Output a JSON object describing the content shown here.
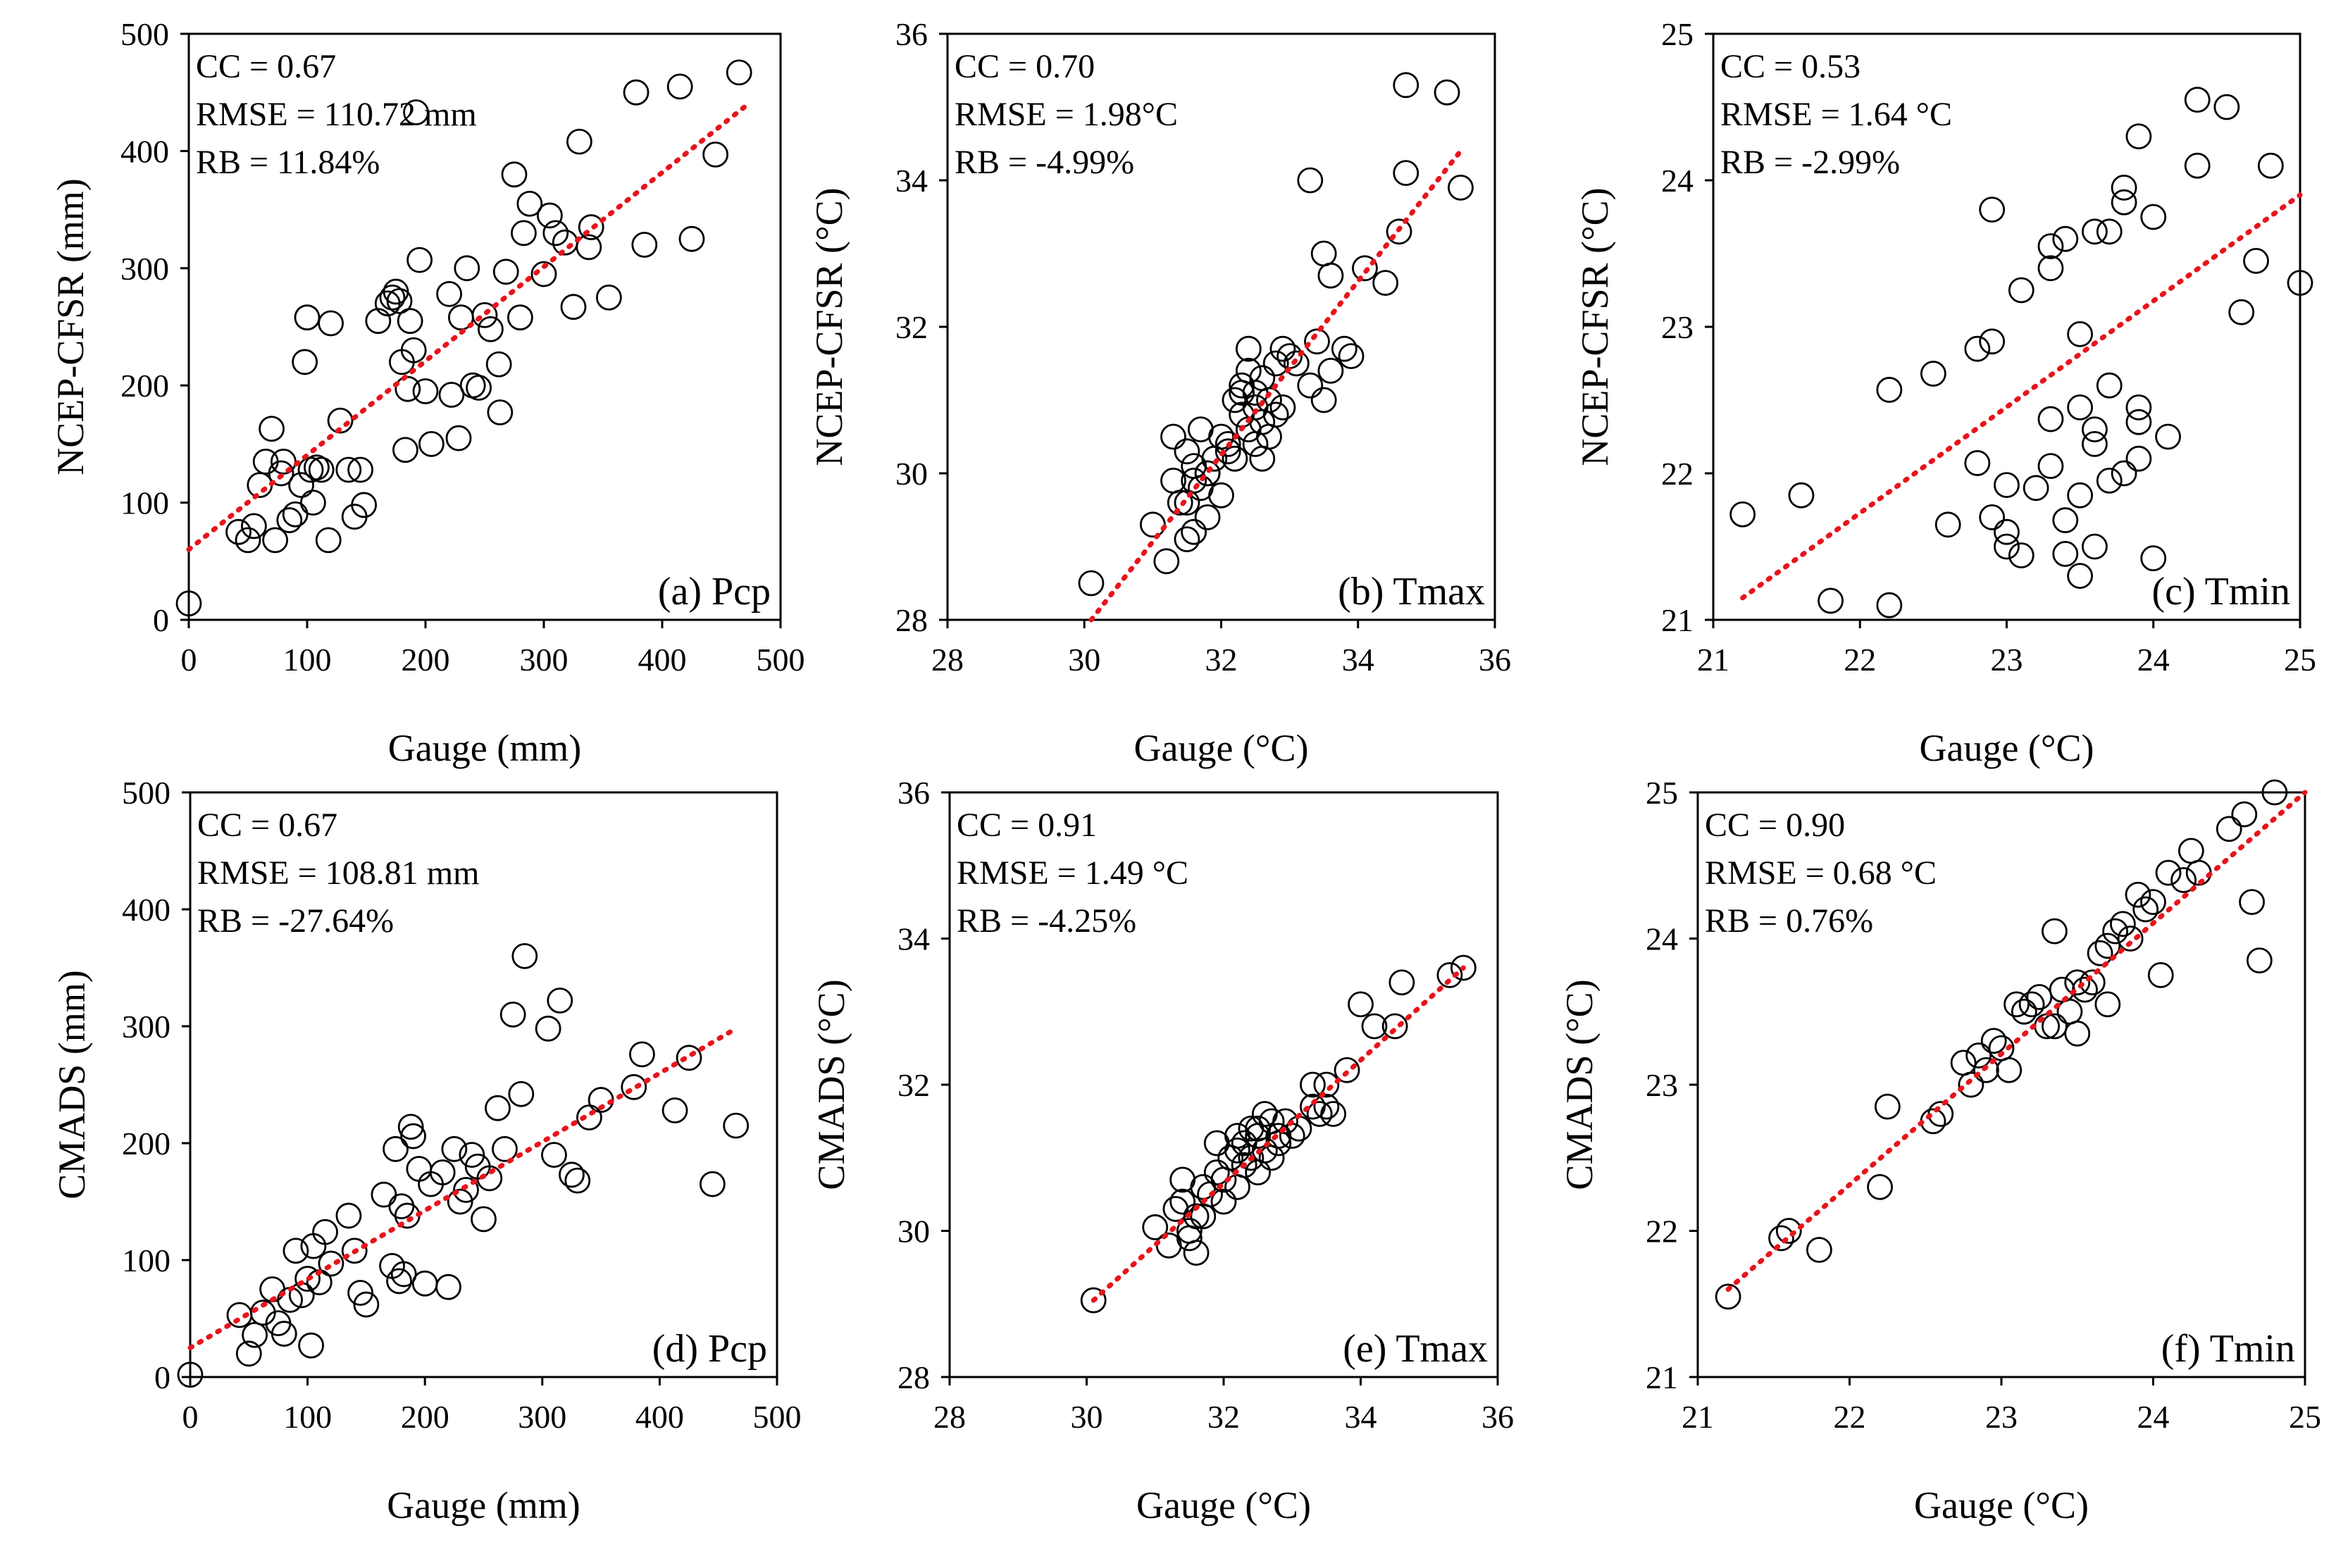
{
  "chart_data": [
    {
      "type": "scatter",
      "panel_label": "(a) Pcp",
      "xlabel": "Gauge (mm)",
      "ylabel": "NCEP-CFSR (mm)",
      "xlim": [
        0,
        500
      ],
      "ylim": [
        0,
        500
      ],
      "xticks": [
        0,
        100,
        200,
        300,
        400,
        500
      ],
      "yticks": [
        0,
        100,
        200,
        300,
        400,
        500
      ],
      "stats": [
        "CC = 0.67",
        "RMSE = 110.72 mm",
        "RB = 11.84%"
      ],
      "trendline": {
        "x": [
          0,
          470
        ],
        "y": [
          60,
          438
        ]
      },
      "series": [
        {
          "x": [
            0,
            42,
            50,
            55,
            60,
            65,
            70,
            73,
            78,
            80,
            85,
            90,
            95,
            98,
            100,
            103,
            105,
            108,
            112,
            118,
            120,
            128,
            135,
            140,
            145,
            148,
            160,
            168,
            172,
            175,
            178,
            180,
            183,
            185,
            187,
            190,
            192,
            195,
            200,
            205,
            220,
            222,
            228,
            230,
            235,
            240,
            245,
            250,
            255,
            262,
            263,
            268,
            275,
            280,
            283,
            288,
            300,
            305,
            310,
            318,
            325,
            330,
            338,
            340,
            355,
            385,
            425,
            445,
            378,
            415,
            465
          ],
          "y": [
            14,
            75,
            68,
            80,
            115,
            135,
            163,
            68,
            125,
            135,
            85,
            90,
            115,
            220,
            258,
            128,
            100,
            130,
            128,
            68,
            253,
            170,
            128,
            88,
            128,
            98,
            255,
            270,
            275,
            280,
            272,
            220,
            145,
            197,
            255,
            230,
            433,
            307,
            195,
            150,
            278,
            192,
            155,
            258,
            300,
            200,
            198,
            260,
            248,
            218,
            177,
            297,
            380,
            258,
            330,
            355,
            295,
            345,
            330,
            322,
            267,
            408,
            318,
            335,
            275,
            320,
            325,
            397,
            450,
            455,
            467
          ]
        }
      ]
    },
    {
      "type": "scatter",
      "panel_label": "(b) Tmax",
      "xlabel": "Gauge (°C)",
      "ylabel": "NCEP-CFSR (°C)",
      "xlim": [
        28,
        36
      ],
      "ylim": [
        28,
        36
      ],
      "xticks": [
        28,
        30,
        32,
        34,
        36
      ],
      "yticks": [
        28,
        30,
        32,
        34,
        36
      ],
      "stats": [
        "CC = 0.70",
        "RMSE = 1.98°C",
        "RB = -4.99%"
      ],
      "trendline": {
        "x": [
          30.1,
          35.5
        ],
        "y": [
          28.0,
          34.4
        ]
      },
      "series": [
        {
          "x": [
            30.1,
            31.0,
            31.2,
            31.3,
            31.4,
            31.5,
            31.5,
            31.6,
            31.6,
            31.7,
            31.7,
            31.8,
            31.8,
            31.9,
            32.0,
            32.0,
            32.1,
            32.2,
            32.2,
            32.3,
            32.3,
            32.4,
            32.4,
            32.5,
            32.5,
            32.5,
            32.6,
            32.6,
            32.6,
            32.7,
            32.7,
            32.8,
            32.8,
            32.9,
            32.9,
            33.0,
            33.1,
            33.3,
            33.3,
            33.4,
            33.5,
            33.5,
            33.6,
            33.6,
            33.8,
            33.9,
            34.1,
            34.4,
            34.6,
            34.7,
            34.7,
            35.3,
            35.5,
            31.3,
            31.5,
            31.6,
            31.8,
            32.1,
            32.4,
            32.3
          ],
          "y": [
            28.5,
            29.3,
            28.8,
            29.9,
            29.6,
            30.3,
            29.1,
            30.1,
            29.2,
            29.8,
            30.6,
            30.0,
            29.4,
            30.2,
            30.5,
            29.7,
            30.4,
            31.0,
            30.2,
            31.2,
            30.8,
            31.7,
            30.6,
            31.1,
            30.4,
            30.9,
            30.2,
            31.3,
            30.7,
            30.5,
            31.0,
            30.8,
            31.5,
            31.7,
            30.9,
            31.6,
            31.5,
            34.0,
            31.2,
            31.8,
            33.0,
            31.0,
            32.7,
            31.4,
            31.7,
            31.6,
            32.8,
            32.6,
            33.3,
            34.1,
            35.3,
            35.2,
            33.9,
            30.5,
            29.6,
            29.9,
            30.0,
            30.3,
            31.4,
            31.1
          ]
        }
      ]
    },
    {
      "type": "scatter",
      "panel_label": "(c) Tmin",
      "xlabel": "Gauge (°C)",
      "ylabel": "NCEP-CFSR (°C)",
      "xlim": [
        21,
        25
      ],
      "ylim": [
        21,
        25
      ],
      "xticks": [
        21,
        22,
        23,
        24,
        25
      ],
      "yticks": [
        21,
        22,
        23,
        24,
        25
      ],
      "stats": [
        "CC = 0.53",
        "RMSE = 1.64 °C",
        "RB = -2.99%"
      ],
      "trendline": {
        "x": [
          21.2,
          25.0
        ],
        "y": [
          21.15,
          23.9
        ]
      },
      "series": [
        {
          "x": [
            21.2,
            21.6,
            21.8,
            22.2,
            22.2,
            22.5,
            22.6,
            22.8,
            22.8,
            22.9,
            22.9,
            23.0,
            23.0,
            23.0,
            23.1,
            23.1,
            23.2,
            23.3,
            23.3,
            23.3,
            23.3,
            23.4,
            23.4,
            23.5,
            23.5,
            23.5,
            23.5,
            23.6,
            23.6,
            23.6,
            23.7,
            23.7,
            23.8,
            23.8,
            23.8,
            23.9,
            23.9,
            23.9,
            24.0,
            24.0,
            24.1,
            24.3,
            24.3,
            24.5,
            24.6,
            24.7,
            24.8,
            25.0,
            23.4,
            23.6,
            23.7,
            23.9,
            22.9
          ],
          "y": [
            21.72,
            21.85,
            21.13,
            21.1,
            22.57,
            22.68,
            21.65,
            22.07,
            22.85,
            21.7,
            22.9,
            21.5,
            21.92,
            21.6,
            21.44,
            23.25,
            21.9,
            23.55,
            23.4,
            22.37,
            22.05,
            21.68,
            23.6,
            21.3,
            21.85,
            22.45,
            22.95,
            23.65,
            22.3,
            21.5,
            23.65,
            21.95,
            22.0,
            23.85,
            23.95,
            22.45,
            24.3,
            22.1,
            21.42,
            23.75,
            22.25,
            24.1,
            24.55,
            24.5,
            23.1,
            23.45,
            24.1,
            23.3,
            21.45,
            22.2,
            22.6,
            22.35,
            23.8
          ]
        }
      ]
    },
    {
      "type": "scatter",
      "panel_label": "(d) Pcp",
      "xlabel": "Gauge (mm)",
      "ylabel": "CMADS (mm)",
      "xlim": [
        0,
        500
      ],
      "ylim": [
        0,
        500
      ],
      "xticks": [
        0,
        100,
        200,
        300,
        400,
        500
      ],
      "yticks": [
        0,
        100,
        200,
        300,
        400,
        500
      ],
      "stats": [
        "CC = 0.67",
        "RMSE = 108.81 mm",
        "RB = -27.64%"
      ],
      "trendline": {
        "x": [
          0,
          465
        ],
        "y": [
          25,
          298
        ]
      },
      "series": [
        {
          "x": [
            0,
            42,
            50,
            55,
            62,
            70,
            75,
            80,
            85,
            90,
            95,
            100,
            103,
            105,
            110,
            115,
            120,
            135,
            140,
            145,
            150,
            165,
            172,
            175,
            178,
            180,
            185,
            188,
            190,
            195,
            200,
            205,
            220,
            225,
            230,
            235,
            240,
            245,
            250,
            255,
            262,
            268,
            275,
            282,
            285,
            305,
            310,
            315,
            325,
            330,
            340,
            350,
            378,
            385,
            413,
            425,
            445,
            465,
            182,
            215
          ],
          "y": [
            2,
            53,
            20,
            36,
            55,
            75,
            46,
            37,
            66,
            108,
            70,
            84,
            27,
            112,
            81,
            124,
            97,
            138,
            108,
            72,
            62,
            156,
            95,
            195,
            82,
            146,
            138,
            214,
            206,
            178,
            80,
            165,
            77,
            195,
            150,
            160,
            190,
            180,
            135,
            170,
            230,
            195,
            310,
            242,
            360,
            298,
            190,
            322,
            173,
            168,
            222,
            237,
            248,
            276,
            228,
            273,
            165,
            215,
            88,
            175
          ]
        }
      ]
    },
    {
      "type": "scatter",
      "panel_label": "(e) Tmax",
      "xlabel": "Gauge (°C)",
      "ylabel": "CMADS (°C)",
      "xlim": [
        28,
        36
      ],
      "ylim": [
        28,
        36
      ],
      "xticks": [
        28,
        30,
        32,
        34,
        36
      ],
      "yticks": [
        28,
        30,
        32,
        34,
        36
      ],
      "stats": [
        "CC = 0.91",
        "RMSE = 1.49 °C",
        "RB = -4.25%"
      ],
      "trendline": {
        "x": [
          30.1,
          35.5
        ],
        "y": [
          29.05,
          33.6
        ]
      },
      "series": [
        {
          "x": [
            30.1,
            31.0,
            31.2,
            31.3,
            31.4,
            31.5,
            31.5,
            31.6,
            31.7,
            31.7,
            31.8,
            31.9,
            32.0,
            32.0,
            32.1,
            32.2,
            32.2,
            32.3,
            32.3,
            32.4,
            32.4,
            32.5,
            32.5,
            32.6,
            32.6,
            32.7,
            32.7,
            32.8,
            32.8,
            32.9,
            33.0,
            33.1,
            33.3,
            33.3,
            33.4,
            33.5,
            33.5,
            33.6,
            33.8,
            34.0,
            34.2,
            34.5,
            34.6,
            35.3,
            35.5,
            31.4,
            31.6,
            31.9,
            32.2,
            32.5
          ],
          "y": [
            29.05,
            30.05,
            29.8,
            30.3,
            30.7,
            30.0,
            29.9,
            29.7,
            30.6,
            30.2,
            30.5,
            31.2,
            30.4,
            30.7,
            31.0,
            30.6,
            31.3,
            30.9,
            31.2,
            31.4,
            31.0,
            31.3,
            30.8,
            31.6,
            31.1,
            31.5,
            31.0,
            31.3,
            31.2,
            31.5,
            31.3,
            31.4,
            32.0,
            31.7,
            31.6,
            31.7,
            32.0,
            31.6,
            32.2,
            33.1,
            32.8,
            32.8,
            33.4,
            33.5,
            33.6,
            30.4,
            30.2,
            30.8,
            31.1,
            31.4
          ]
        }
      ]
    },
    {
      "type": "scatter",
      "panel_label": "(f) Tmin",
      "xlabel": "Gauge (°C)",
      "ylabel": "CMADS (°C)",
      "xlim": [
        21,
        25
      ],
      "ylim": [
        21,
        25
      ],
      "xticks": [
        21,
        22,
        23,
        24,
        25
      ],
      "yticks": [
        21,
        22,
        23,
        24,
        25
      ],
      "stats": [
        "CC = 0.90",
        "RMSE = 0.68 °C",
        "RB = 0.76%"
      ],
      "trendline": {
        "x": [
          21.2,
          25.0
        ],
        "y": [
          21.6,
          25.0
        ]
      },
      "series": [
        {
          "x": [
            21.2,
            21.55,
            21.6,
            21.8,
            22.2,
            22.25,
            22.55,
            22.6,
            22.75,
            22.8,
            22.85,
            22.9,
            22.95,
            23.0,
            23.05,
            23.1,
            23.15,
            23.2,
            23.25,
            23.3,
            23.35,
            23.4,
            23.45,
            23.5,
            23.55,
            23.6,
            23.65,
            23.7,
            23.75,
            23.8,
            23.85,
            23.9,
            23.95,
            24.0,
            24.05,
            24.1,
            24.2,
            24.25,
            24.3,
            24.5,
            24.6,
            24.65,
            24.7,
            24.8,
            23.35,
            23.5,
            23.7
          ],
          "y": [
            21.55,
            21.95,
            22.0,
            21.87,
            22.3,
            22.85,
            22.75,
            22.8,
            23.15,
            23.0,
            23.2,
            23.1,
            23.3,
            23.25,
            23.1,
            23.55,
            23.5,
            23.55,
            23.6,
            23.4,
            24.05,
            23.65,
            23.5,
            23.7,
            23.65,
            23.7,
            23.9,
            23.95,
            24.05,
            24.1,
            24.0,
            24.3,
            24.2,
            24.25,
            23.75,
            24.45,
            24.4,
            24.6,
            24.45,
            24.75,
            24.85,
            24.25,
            23.85,
            25.0,
            23.4,
            23.35,
            23.55
          ]
        }
      ]
    }
  ]
}
